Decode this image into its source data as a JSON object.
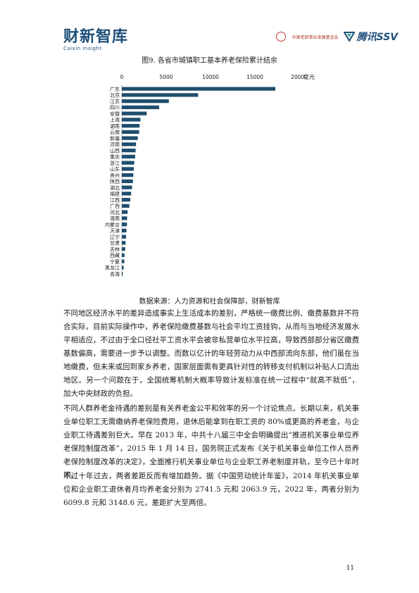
{
  "header": {
    "brand_cn": "财新智库",
    "brand_en": "Caixin Insight",
    "org_name": "中国老龄事业发展基金会",
    "partner": "腾讯SSV"
  },
  "figure": {
    "title": "图9. 各省市城镇职工基本养老保险累计结余",
    "source": "数据来源：人力资源和社会保障部，财新智库"
  },
  "chart_data": {
    "type": "bar",
    "orientation": "horizontal",
    "unit_label": "亿元",
    "xlim": [
      0,
      20000
    ],
    "x_ticks": [
      "0",
      "5000",
      "10000",
      "15000",
      "20000"
    ],
    "bar_color": "#1f4e6e",
    "categories": [
      "广东",
      "北京",
      "江苏",
      "四川",
      "安徽",
      "上海",
      "湖南",
      "云南",
      "新疆",
      "河南",
      "山西",
      "重庆",
      "浙江",
      "山东",
      "贵州",
      "陕西",
      "湖北",
      "福建",
      "江西",
      "广西",
      "河北",
      "海南",
      "内蒙古",
      "天津",
      "辽宁",
      "甘肃",
      "吉林",
      "西藏",
      "宁夏",
      "黑龙江",
      "青海"
    ],
    "values": [
      17300,
      8600,
      5300,
      4200,
      2800,
      2100,
      2000,
      1950,
      1800,
      1600,
      1550,
      1500,
      1400,
      1350,
      1300,
      1250,
      1150,
      1050,
      950,
      850,
      650,
      600,
      580,
      520,
      480,
      420,
      380,
      300,
      280,
      200,
      100
    ]
  },
  "body": {
    "p1": "不同地区经济水平的差异造成事实上生活成本的差别，严格统一缴费比例、缴费基数并不符合实际，目前实际操作中，养老保险缴费基数与社会平均工资挂钩，从而与当地经济发展水平相适应，不过由于全口径社平工资水平会被非私营单位水平拉高，导致西部部分省区缴费基数偏高，需要进一步予以调整。而数以亿计的年轻劳动力从中西部流向东部，他们虽在当地缴费，但未来或回到家乡养老，国家层面需有更具针对性的转移支付机制以补贴人口流出地区。另一个问题在于，全国统筹机制大概率导致计发标准在统一过程中“就高不就低”，加大中央财政的负担。",
    "p2": "不同人群养老金待遇的差别是有关养老金公平和效率的另一个讨论焦点。长期以来，机关事业单位职工无需缴纳养老保险费用，退休后能拿到在职工资的 80%或更高的养老金，与企业职工待遇差别巨大。早在 2013 年，中共十八届三中全会明确提出“推进机关事业单位养老保险制度改革”，2015 年 1 月 14 日，国务院正式发布《关于机关事业单位工作人员养老保险制度改革的决定》，全面推行机关事业单位与企业职工养老制度并轨，至今已十年时间。",
    "p3": "不过十年过去，两者差距反而有增加趋势。据《中国劳动统计年鉴》，2014 年机关事业单位和企业职工退休者月均养老金分别为 2741.5 元和 2063.9 元，2022 年，两者分别为 6099.8 元和 3148.6 元，差距扩大至两倍。"
  },
  "page_number": "11"
}
